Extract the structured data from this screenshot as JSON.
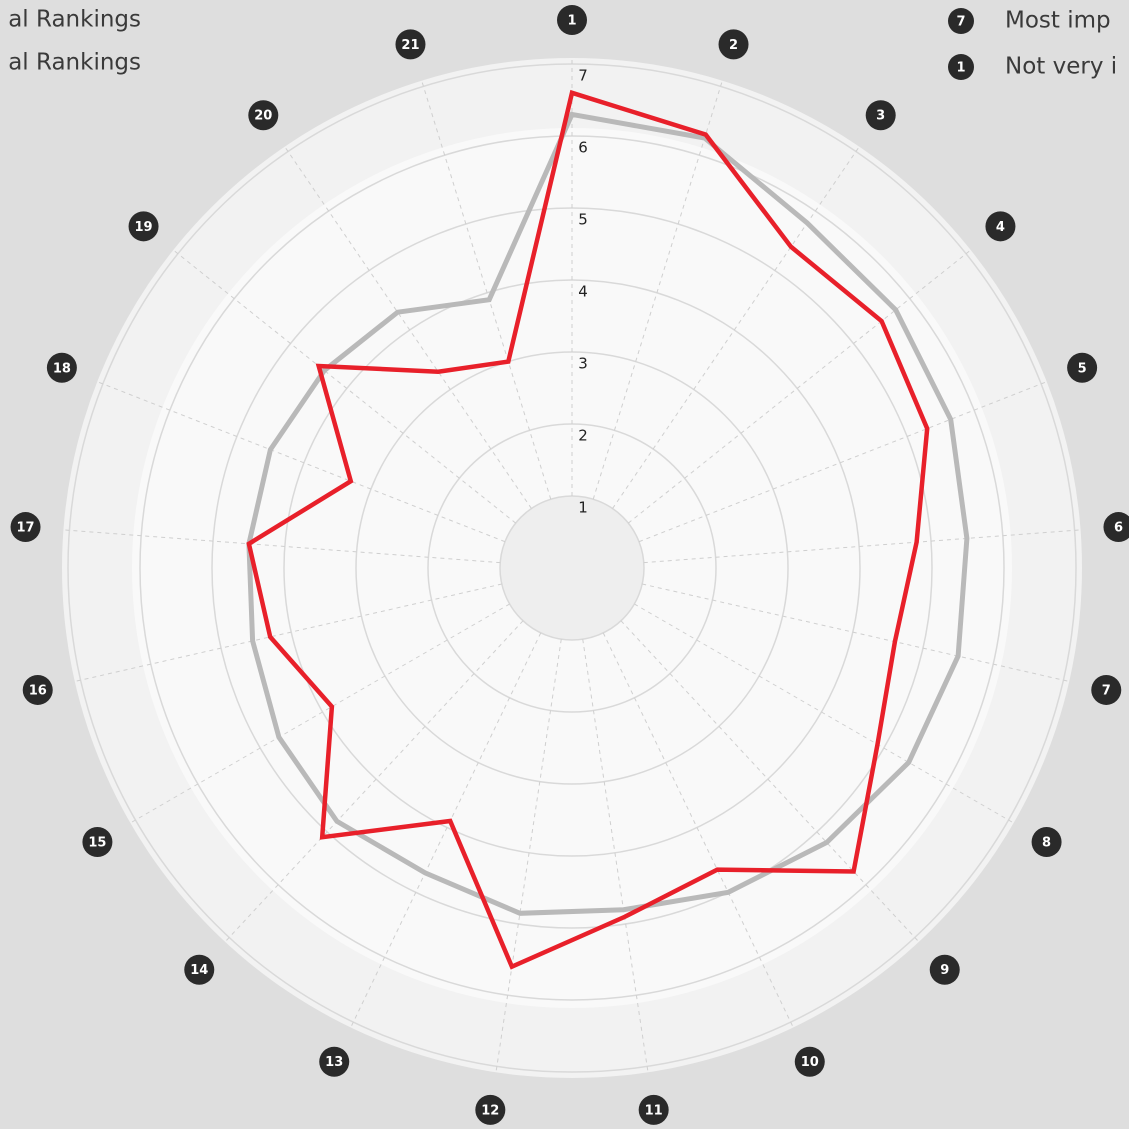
{
  "chart_data": {
    "type": "radar",
    "categories": [
      "1",
      "2",
      "3",
      "4",
      "5",
      "6",
      "7",
      "8",
      "9",
      "10",
      "11",
      "12",
      "13",
      "14",
      "15",
      "16",
      "17",
      "18",
      "19",
      "20",
      "21"
    ],
    "ylim": [
      0,
      7
    ],
    "yticks": [
      1,
      2,
      3,
      4,
      5,
      6,
      7
    ],
    "series": [
      {
        "name": "al Rankings",
        "color": "#b9b9b9",
        "values": [
          6.3,
          6.25,
          5.8,
          5.75,
          5.65,
          5.5,
          5.5,
          5.4,
          5.2,
          5.0,
          4.8,
          4.85,
          4.7,
          4.8,
          4.7,
          4.55,
          4.5,
          4.5,
          4.4,
          4.3,
          3.9
        ]
      },
      {
        "name": "al Rankings",
        "color": "#e8202a",
        "values": [
          6.6,
          6.3,
          5.4,
          5.5,
          5.3,
          4.8,
          4.6,
          4.9,
          5.75,
          4.65,
          4.9,
          5.6,
          3.9,
          5.1,
          3.85,
          4.3,
          4.5,
          3.3,
          4.5,
          3.3,
          3.0
        ]
      }
    ],
    "scale_legend": [
      {
        "badge": 7,
        "text": "Most imp"
      },
      {
        "badge": 1,
        "text": "Not very i"
      }
    ]
  }
}
